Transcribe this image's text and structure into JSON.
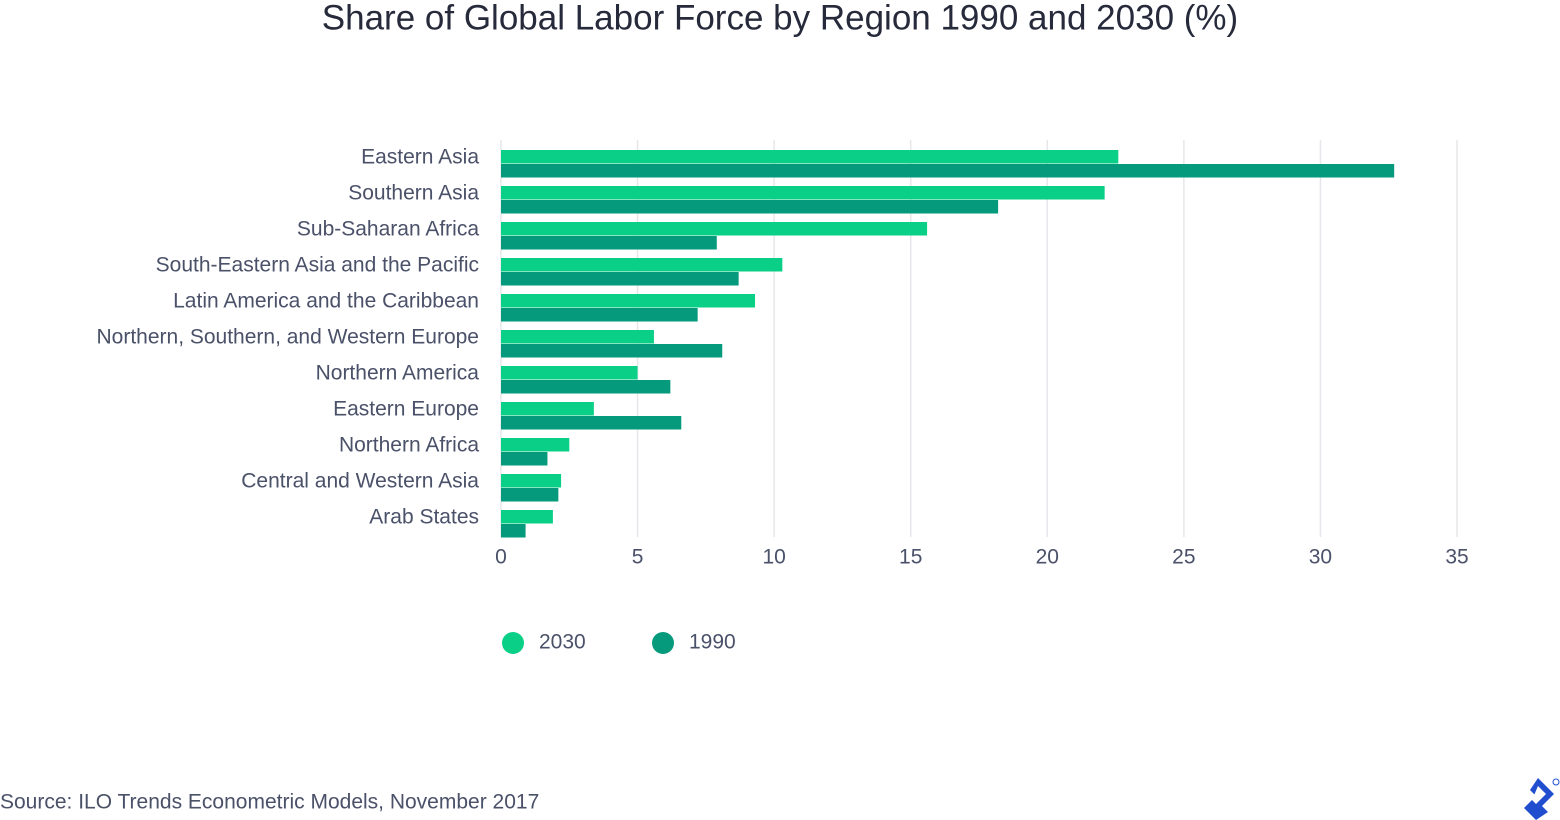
{
  "chart_data": {
    "type": "bar",
    "orientation": "horizontal",
    "title": "Share of Global Labor Force by Region 1990 and 2030 (%)",
    "categories": [
      "Eastern Asia",
      "Southern Asia",
      "Sub-Saharan Africa",
      "South-Eastern Asia and the Pacific",
      "Latin America and the Caribbean",
      "Northern, Southern, and Western Europe",
      "Northern America",
      "Eastern Europe",
      "Northern Africa",
      "Central and Western Asia",
      "Arab States"
    ],
    "series": [
      {
        "name": "2030",
        "color": "#0acf87",
        "values": [
          22.6,
          22.1,
          15.6,
          10.3,
          9.3,
          5.6,
          5.0,
          3.4,
          2.5,
          2.2,
          1.9
        ]
      },
      {
        "name": "1990",
        "color": "#069a7d",
        "values": [
          32.7,
          18.2,
          7.9,
          8.7,
          7.2,
          8.1,
          6.2,
          6.6,
          1.7,
          2.1,
          0.9
        ]
      }
    ],
    "xlim": [
      0,
      35
    ],
    "xticks": [
      0,
      5,
      10,
      15,
      20,
      25,
      30,
      35
    ],
    "grid": true,
    "legend": "bottom",
    "source": "Source: ILO Trends Econometric Models, November 2017"
  }
}
